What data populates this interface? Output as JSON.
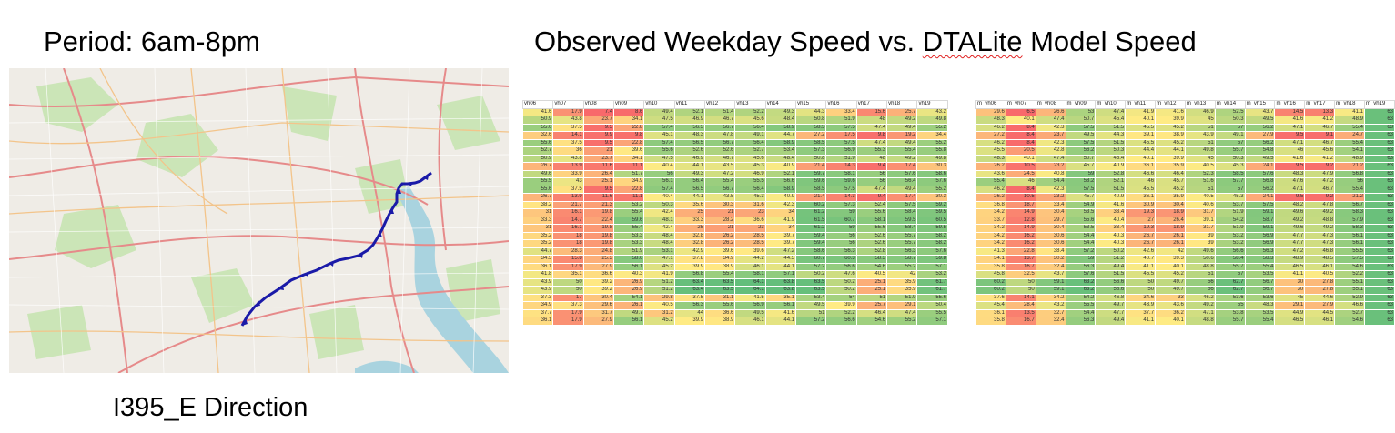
{
  "header": {
    "period": "Period: 6am-8pm",
    "title_pre": "Observed Weekday Speed vs. ",
    "title_mark": "DTALite",
    "title_post": " Model Speed"
  },
  "footer": {
    "direction": "I395_E Direction"
  },
  "colors": {
    "low": "#f8696b",
    "mid": "#ffeb84",
    "high": "#63be7b",
    "route": "#1a1aa8",
    "water": "#a9d3df"
  },
  "color_scale": {
    "min": 8,
    "mid": 40,
    "max": 64
  },
  "observed": {
    "headers": [
      "vh06",
      "vh07",
      "vh08",
      "vh09",
      "vh10",
      "vh11",
      "vh12",
      "vh13",
      "vh14",
      "vh15",
      "vh16",
      "vh17",
      "vh18",
      "vh19"
    ],
    "rows": [
      [
        41.6,
        17.9,
        7.4,
        8.6,
        49.4,
        52.1,
        51.4,
        52.2,
        49.3,
        44.3,
        33.4,
        15.6,
        25.7,
        43.2
      ],
      [
        50.9,
        43.8,
        23.7,
        34.1,
        47.5,
        46.9,
        46.7,
        45.6,
        48.4,
        50.8,
        51.9,
        48,
        49.2,
        49.8
      ],
      [
        55.6,
        37.5,
        9.5,
        22.8,
        57.4,
        56.5,
        56.7,
        56.4,
        58.9,
        58.5,
        57.5,
        47.4,
        49.4,
        55.2
      ],
      [
        32.6,
        14.1,
        9.9,
        9.8,
        45.1,
        48.3,
        47.8,
        49.1,
        44.7,
        27.2,
        17.5,
        9.8,
        19.2,
        34.4
      ],
      [
        55.6,
        37.5,
        9.5,
        22.8,
        57.4,
        56.5,
        56.7,
        56.4,
        58.9,
        58.5,
        57.5,
        47.4,
        49.4,
        55.2
      ],
      [
        52.7,
        36,
        21,
        39.6,
        55.6,
        52.6,
        52.6,
        52.7,
        53.4,
        57.3,
        56.9,
        55.3,
        55.4,
        55.8
      ],
      [
        50.9,
        43.8,
        23.7,
        34.1,
        47.5,
        46.9,
        46.7,
        45.6,
        48.4,
        50.8,
        51.9,
        48,
        49.2,
        49.8
      ],
      [
        26.7,
        13.9,
        11.6,
        11.1,
        40.4,
        44.1,
        43.5,
        45.3,
        40.9,
        21.4,
        14.3,
        9.4,
        17.4,
        30.3
      ],
      [
        49.6,
        33.9,
        26.4,
        51.7,
        56,
        49.3,
        47.2,
        46.9,
        52.1,
        59.7,
        58.1,
        56,
        57.6,
        58.6
      ],
      [
        55.5,
        43,
        25.1,
        34.9,
        56.1,
        56.4,
        55.4,
        55.5,
        56.6,
        59.6,
        59.6,
        56,
        56.4,
        57.6
      ],
      [
        55.6,
        37.5,
        9.5,
        22.8,
        57.4,
        56.5,
        56.7,
        56.4,
        58.9,
        58.5,
        57.5,
        47.4,
        49.4,
        55.2
      ],
      [
        26.7,
        13.9,
        11.6,
        11.1,
        40.4,
        44.1,
        43.5,
        45.3,
        40.9,
        21.4,
        14.3,
        9.4,
        17.4,
        30.3
      ],
      [
        38.2,
        21.7,
        21.3,
        53.2,
        50.3,
        35.6,
        30.3,
        31.6,
        42.3,
        60.2,
        57.3,
        52.4,
        57.5,
        59.2
      ],
      [
        31,
        16.1,
        19.8,
        55.4,
        42.4,
        25,
        21,
        23,
        34,
        61.2,
        59,
        55.6,
        58.4,
        59.5
      ],
      [
        33.3,
        14.7,
        22.4,
        59.6,
        48.1,
        33.3,
        28.2,
        36.6,
        41.9,
        61.5,
        60.7,
        58.1,
        59.5,
        60.5
      ],
      [
        31,
        16.1,
        19.8,
        55.4,
        42.4,
        25,
        21,
        23,
        34,
        61.2,
        59,
        55.6,
        58.4,
        59.5
      ],
      [
        35.2,
        18,
        19.8,
        53.3,
        48.4,
        32.8,
        26.2,
        28.5,
        39.7,
        59.4,
        56,
        52.6,
        55.7,
        58.2
      ],
      [
        35.2,
        18,
        19.8,
        53.3,
        48.4,
        32.8,
        26.2,
        28.5,
        39.7,
        59.4,
        56,
        52.6,
        55.7,
        58.2
      ],
      [
        44.7,
        28.3,
        24.8,
        51.9,
        53.1,
        42.9,
        39.6,
        39.6,
        47.2,
        58.6,
        56.3,
        52.8,
        56.3,
        57.6
      ],
      [
        34.5,
        15.8,
        25.3,
        58.6,
        47.1,
        37.8,
        34.9,
        44.2,
        44.5,
        60.7,
        60.3,
        58.3,
        58.7,
        59.8
      ],
      [
        36.1,
        17.9,
        27.9,
        56.1,
        45.2,
        39.9,
        38.9,
        46.1,
        44.1,
        57.2,
        56.6,
        54.6,
        55.2,
        57.1
      ],
      [
        41.8,
        35.1,
        36.6,
        40.3,
        41.9,
        56.8,
        55.4,
        58.1,
        57.1,
        50.2,
        47.6,
        40.5,
        42,
        53.2
      ],
      [
        43.9,
        50,
        39.2,
        26.9,
        51.2,
        63.4,
        63.5,
        64.1,
        63.8,
        63.5,
        50.2,
        25.1,
        35.9,
        61.7
      ],
      [
        43.9,
        50,
        39.2,
        26.9,
        51.2,
        63.4,
        63.5,
        64.1,
        63.8,
        63.5,
        50.2,
        25.1,
        35.9,
        61.7
      ],
      [
        37.3,
        17,
        30.4,
        54.1,
        29.8,
        37.5,
        31.1,
        41.5,
        35.1,
        53.4,
        54,
        51,
        51.9,
        55.6
      ],
      [
        34.9,
        37.3,
        29.6,
        26.1,
        40.5,
        56.3,
        55.6,
        56.9,
        56.1,
        49.5,
        39.9,
        25.7,
        29.1,
        50.4
      ],
      [
        37.7,
        17.9,
        31.7,
        49.7,
        31.2,
        44,
        36.6,
        49.5,
        41.6,
        51,
        52.2,
        46.4,
        47.4,
        55.5
      ],
      [
        36.1,
        17.9,
        27.9,
        56.1,
        45.2,
        39.9,
        38.9,
        46.1,
        44.1,
        57.2,
        56.6,
        54.6,
        55.2,
        57.1
      ]
    ]
  },
  "model": {
    "headers": [
      "m_vh06",
      "m_vh07",
      "m_vh08",
      "m_vh09",
      "m_vh10",
      "m_vh11",
      "m_vh12",
      "m_vh13",
      "m_vh14",
      "m_vh15",
      "m_vh16",
      "m_vh17",
      "m_vh18",
      "m_vh19"
    ],
    "rows": [
      [
        29.6,
        6.5,
        26.6,
        53,
        47.4,
        41.9,
        41.6,
        46.9,
        52.5,
        43.7,
        14.5,
        13.3,
        41.1,
        63
      ],
      [
        48.3,
        40.1,
        47.4,
        50.7,
        45.4,
        40.1,
        39.9,
        45,
        50.3,
        49.5,
        41.6,
        41.2,
        48.9,
        63
      ],
      [
        46.2,
        8.4,
        42.3,
        57.5,
        51.5,
        45.5,
        45.2,
        51,
        57,
        56.2,
        47.1,
        46.7,
        55.4,
        63
      ],
      [
        27.2,
        8.4,
        23.7,
        49.5,
        44.3,
        39.1,
        38.9,
        43.9,
        49.1,
        27.9,
        9.5,
        9.1,
        24.7,
        63
      ],
      [
        46.2,
        8.4,
        42.3,
        57.5,
        51.5,
        45.5,
        45.2,
        51,
        57,
        56.2,
        47.1,
        46.7,
        55.4,
        63
      ],
      [
        45.5,
        20.5,
        42.8,
        56.2,
        50.3,
        44.4,
        44.1,
        49.8,
        55.7,
        54.8,
        46,
        45.6,
        54.1,
        63
      ],
      [
        48.3,
        40.1,
        47.4,
        50.7,
        45.4,
        40.1,
        39.9,
        45,
        50.3,
        49.5,
        41.6,
        41.2,
        48.9,
        63
      ],
      [
        26.2,
        10.5,
        23.2,
        45.7,
        40.9,
        36.1,
        35.9,
        40.5,
        45.3,
        24.1,
        9.5,
        9.2,
        21.2,
        63
      ],
      [
        43.6,
        24.5,
        40.8,
        59,
        52.8,
        46.6,
        46.4,
        52.3,
        58.5,
        57.6,
        48.3,
        47.9,
        56.8,
        63
      ],
      [
        55.4,
        46,
        54.4,
        58.2,
        52.1,
        46,
        45.7,
        51.6,
        57.7,
        56.8,
        47.6,
        47.2,
        56,
        63
      ],
      [
        46.2,
        8.4,
        42.3,
        57.5,
        51.5,
        45.5,
        45.2,
        51,
        57,
        56.2,
        47.1,
        46.7,
        55.4,
        63
      ],
      [
        26.2,
        10.5,
        23.2,
        45.7,
        40.9,
        36.1,
        35.9,
        40.5,
        45.3,
        24.1,
        9.5,
        9.2,
        21.2,
        63
      ],
      [
        36.8,
        18.7,
        33.4,
        54.9,
        41.6,
        30.9,
        30.4,
        40.6,
        53.7,
        57.5,
        48.2,
        47.8,
        56.7,
        63
      ],
      [
        34.2,
        14.9,
        30.4,
        53.5,
        33.4,
        19.3,
        18.9,
        31.7,
        51.9,
        59.1,
        49.6,
        49.2,
        58.3,
        63
      ],
      [
        33.7,
        12.8,
        29.7,
        55.6,
        40.4,
        27,
        26.4,
        39.1,
        54.2,
        58.7,
        49.2,
        48.8,
        57.9,
        63
      ],
      [
        34.2,
        14.9,
        30.4,
        53.5,
        33.4,
        19.3,
        18.9,
        31.7,
        51.9,
        59.1,
        49.6,
        49.2,
        58.3,
        63
      ],
      [
        34.2,
        16.2,
        30.6,
        54.4,
        40.3,
        26.7,
        26.1,
        39,
        53.2,
        56.9,
        47.7,
        47.3,
        56.1,
        63
      ],
      [
        34.2,
        16.2,
        30.6,
        54.4,
        40.3,
        26.7,
        26.1,
        39,
        53.2,
        56.9,
        47.7,
        47.3,
        56.1,
        63
      ],
      [
        41.3,
        22.8,
        38.4,
        57.2,
        50.2,
        42.6,
        42,
        49.6,
        56.6,
        56.3,
        47.2,
        46.8,
        55.5,
        63
      ],
      [
        34.1,
        13.7,
        30.2,
        59,
        51.2,
        40.7,
        39.3,
        50.6,
        58.4,
        58.3,
        48.9,
        48.5,
        57.5,
        63
      ],
      [
        35.8,
        16.7,
        32.4,
        56.3,
        49.4,
        41.1,
        40.1,
        48.8,
        55.7,
        55.4,
        46.5,
        46.1,
        54.6,
        63
      ],
      [
        45.8,
        32.5,
        43.7,
        57.6,
        51.5,
        45.5,
        45.2,
        51,
        57,
        53.5,
        41.1,
        40.5,
        52.2,
        63
      ],
      [
        60.2,
        50,
        59.1,
        63.2,
        56.6,
        50,
        49.7,
        56,
        62.7,
        56.7,
        30,
        27.8,
        55.1,
        63
      ],
      [
        60.2,
        50,
        59.1,
        63.2,
        56.6,
        50,
        49.7,
        56,
        62.7,
        56.7,
        30,
        27.8,
        55.1,
        63
      ],
      [
        37.6,
        14.1,
        34.2,
        54.2,
        46.8,
        34.6,
        33,
        46.2,
        53.6,
        53.6,
        45,
        44.6,
        52.9,
        63
      ],
      [
        45.4,
        28.4,
        43.2,
        55.5,
        49.7,
        43.9,
        43.6,
        49.2,
        55,
        48.3,
        29.1,
        27.9,
        46.6,
        63
      ],
      [
        36.1,
        13.5,
        32.7,
        54.4,
        47.7,
        37.7,
        36.2,
        47.1,
        53.8,
        53.5,
        44.9,
        44.5,
        52.7,
        63
      ],
      [
        35.8,
        16.7,
        32.4,
        56.3,
        49.4,
        41.1,
        40.1,
        48.8,
        55.7,
        55.4,
        46.5,
        46.1,
        54.6,
        63
      ]
    ]
  }
}
